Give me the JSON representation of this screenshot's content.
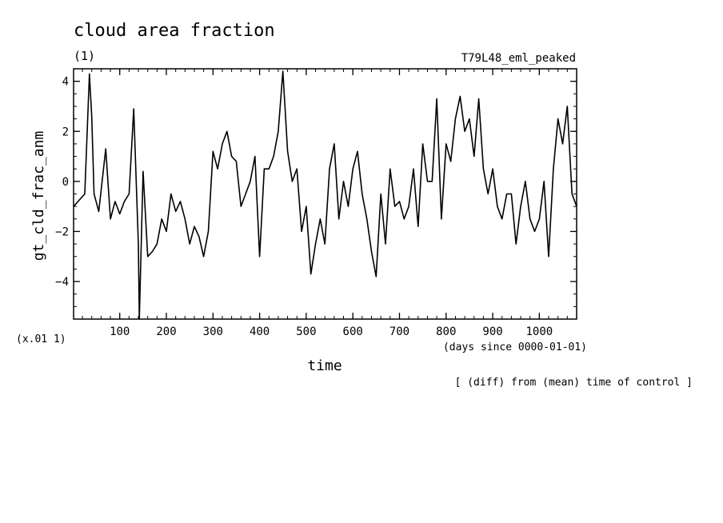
{
  "chart_data": {
    "type": "line",
    "title": "cloud area fraction",
    "unit_note": "(1)",
    "experiment": "T79L48_eml_peaked",
    "xlabel": "time",
    "xunits": "(days since 0000-01-01)",
    "ylabel": "gt_cld_frac_anm",
    "yscale_note": "(x.01 1)",
    "footnote": "[ (diff) from (mean) time of control ]",
    "xlim": [
      1,
      1080
    ],
    "ylim": [
      -5.5,
      4.5
    ],
    "xticks": [
      100,
      200,
      300,
      400,
      500,
      600,
      700,
      800,
      900,
      1000
    ],
    "yticks": [
      4,
      2,
      0,
      -2,
      -4
    ],
    "tick_labels_x": [
      "100",
      "200",
      "300",
      "400",
      "500",
      "600",
      "700",
      "800",
      "900",
      "1000"
    ],
    "tick_labels_y": [
      "4",
      "2",
      "0",
      "−2",
      "−4"
    ],
    "series": [
      {
        "x": [
          1,
          25,
          35,
          40,
          45,
          55,
          70,
          80,
          90,
          100,
          110,
          120,
          130,
          140,
          142,
          150,
          160,
          170,
          180,
          190,
          200,
          210,
          220,
          230,
          240,
          250,
          260,
          270,
          280,
          290,
          300,
          310,
          320,
          330,
          340,
          350,
          360,
          370,
          380,
          390,
          400,
          410,
          420,
          430,
          440,
          450,
          460,
          470,
          480,
          490,
          500,
          510,
          520,
          530,
          540,
          550,
          560,
          570,
          580,
          590,
          600,
          610,
          620,
          630,
          640,
          650,
          660,
          670,
          680,
          690,
          700,
          710,
          720,
          730,
          740,
          750,
          760,
          770,
          780,
          790,
          800,
          810,
          820,
          830,
          840,
          850,
          860,
          870,
          880,
          890,
          900,
          910,
          920,
          930,
          940,
          950,
          960,
          970,
          980,
          990,
          1000,
          1010,
          1020,
          1030,
          1040,
          1050,
          1060,
          1070,
          1080
        ],
        "y": [
          -1.0,
          -0.5,
          4.3,
          2.6,
          -0.5,
          -1.2,
          1.3,
          -1.5,
          -0.8,
          -1.3,
          -0.8,
          -0.5,
          2.9,
          -2.5,
          -5.5,
          0.4,
          -3.0,
          -2.8,
          -2.5,
          -1.5,
          -2.0,
          -0.5,
          -1.2,
          -0.8,
          -1.5,
          -2.5,
          -1.8,
          -2.2,
          -3.0,
          -2.0,
          1.2,
          0.5,
          1.5,
          2.0,
          1.0,
          0.8,
          -1.0,
          -0.5,
          0.0,
          1.0,
          -3.0,
          0.5,
          0.5,
          1.0,
          2.0,
          4.4,
          1.2,
          0.0,
          0.5,
          -2.0,
          -1.0,
          -3.7,
          -2.5,
          -1.5,
          -2.5,
          0.5,
          1.5,
          -1.5,
          0.0,
          -1.0,
          0.5,
          1.2,
          -0.5,
          -1.5,
          -2.8,
          -3.8,
          -0.5,
          -2.5,
          0.5,
          -1.0,
          -0.8,
          -1.5,
          -1.0,
          0.5,
          -1.8,
          1.5,
          0.0,
          0.0,
          3.3,
          -1.5,
          1.5,
          0.8,
          2.5,
          3.4,
          2.0,
          2.5,
          1.0,
          3.3,
          0.5,
          -0.5,
          0.5,
          -1.0,
          -1.5,
          -0.5,
          -0.5,
          -2.5,
          -1.0,
          0.0,
          -1.5,
          -2.0,
          -1.5,
          0.0,
          -3.0,
          0.5,
          2.5,
          1.5,
          3.0,
          -0.5,
          -1.0
        ]
      }
    ]
  }
}
